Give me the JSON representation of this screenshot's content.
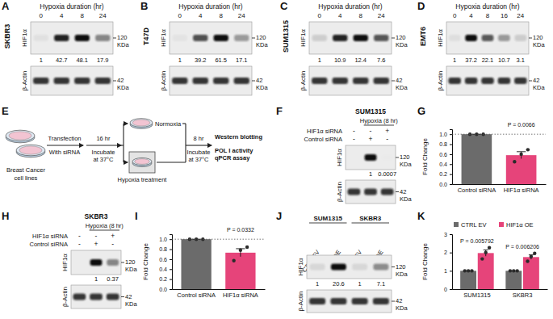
{
  "blots": [
    {
      "panel": "A",
      "cell_line": "SKBR3",
      "header": "Hypoxia duration (hr)",
      "lanes": [
        0,
        4,
        8,
        24
      ],
      "rows": [
        {
          "protein": "HIF1α",
          "size": "120 KDa",
          "quant": [
            1,
            42.7,
            48.1,
            17.9
          ]
        },
        {
          "protein": "β-Actin",
          "size": "42 KDa"
        }
      ]
    },
    {
      "panel": "B",
      "cell_line": "T47D",
      "header": "Hypoxia duration (hr)",
      "lanes": [
        0,
        4,
        8,
        24
      ],
      "rows": [
        {
          "protein": "HIF1α",
          "size": "120 KDa",
          "quant": [
            1,
            39.2,
            61.5,
            17.1
          ]
        },
        {
          "protein": "β-Actin",
          "size": "42 KDa"
        }
      ]
    },
    {
      "panel": "C",
      "cell_line": "SUM1315",
      "header": "Hypoxia duration (hr)",
      "lanes": [
        0,
        4,
        8,
        24
      ],
      "rows": [
        {
          "protein": "HIF1α",
          "size": "120 KDa",
          "quant": [
            1,
            10.9,
            12.4,
            7.6
          ]
        },
        {
          "protein": "β-Actin",
          "size": "42 KDa"
        }
      ]
    },
    {
      "panel": "D",
      "cell_line": "EMT6",
      "header": "Hypoxia duration (hr)",
      "lanes": [
        0,
        4,
        8,
        16,
        24
      ],
      "rows": [
        {
          "protein": "HIF1α",
          "size": "120 KDa",
          "quant": [
            1,
            37.2,
            22.1,
            10.7,
            3.1
          ]
        },
        {
          "protein": "β-Actin",
          "size": "42 KDa"
        }
      ]
    },
    {
      "panel": "F",
      "cell_line": "SUM1315",
      "header": "Hypoxia (8 hr)",
      "treatments": [
        {
          "label": "HIF1α siRNA",
          "signs": [
            "-",
            "-",
            "+"
          ]
        },
        {
          "label": "Control siRNA",
          "signs": [
            "-",
            "+",
            "-"
          ]
        }
      ],
      "rows": [
        {
          "protein": "HIF1α",
          "size": "120 KDa",
          "quant": [
            null,
            1,
            0.0007
          ]
        },
        {
          "protein": "β-Actin",
          "size": "42 KDa"
        }
      ]
    },
    {
      "panel": "H",
      "cell_line": "SKBR3",
      "header": "Hypoxia (8 hr)",
      "treatments": [
        {
          "label": "HIF1α siRNA",
          "signs": [
            "-",
            "-",
            "+"
          ]
        },
        {
          "label": "Control siRNA",
          "signs": [
            "-",
            "+",
            "-"
          ]
        }
      ],
      "rows": [
        {
          "protein": "HIF1α",
          "size": "120 KDa",
          "quant": [
            null,
            1,
            0.37
          ]
        },
        {
          "protein": "β-Actin",
          "size": "42 KDa"
        }
      ]
    },
    {
      "panel": "J",
      "groups": [
        {
          "label": "SUM1315",
          "lanes": [
            "CTRL EV",
            "HIF1α OE"
          ]
        },
        {
          "label": "SKBR3",
          "lanes": [
            "CTRL EV",
            "HIF1α OE"
          ]
        }
      ],
      "rows": [
        {
          "protein": "HIF1α",
          "size": "120 KDa",
          "quant": [
            1,
            20.6,
            1,
            7.1
          ]
        },
        {
          "protein": "β-Actin",
          "size": "42 KDa"
        }
      ]
    }
  ],
  "schematic": {
    "panel": "E",
    "source": [
      "Breast Cancer",
      "cell lines"
    ],
    "step1": [
      "Transfection",
      "With siRNA"
    ],
    "step2": {
      "above": "16 hr",
      "below": [
        "Incubate",
        "at 37°C"
      ]
    },
    "normoxia": "Normoxia",
    "hypoxia": "Hypoxia treatment",
    "step3": {
      "above": "8 hr",
      "below": [
        "Incubate",
        "at 37°C"
      ]
    },
    "outputs": [
      "Western blotting",
      "POL I activity",
      "qPCR assay"
    ]
  },
  "chart_data": [
    {
      "panel": "G",
      "type": "bar",
      "categories": [
        "Control siRNA",
        "HIF1α siRNA"
      ],
      "values": [
        1,
        0.58
      ],
      "errors": [
        0,
        0.07
      ],
      "points": [
        [
          1,
          1,
          1
        ],
        [
          0.45,
          0.6,
          0.69
        ]
      ],
      "colors": [
        "#6b6b6b",
        "#e6447a"
      ],
      "y_label": "Fold Change",
      "ylim": [
        0,
        1.1
      ],
      "yticks": [
        {
          "value": 0,
          "label": "0.0"
        },
        0.2,
        0.4,
        0.6,
        0.8,
        {
          "value": 1,
          "label": "1.0"
        }
      ],
      "reference_line": 1,
      "annotations": [
        "P = 0.0066"
      ]
    },
    {
      "panel": "I",
      "type": "bar",
      "categories": [
        "Control siRNA",
        "HIF1α siRNA"
      ],
      "values": [
        1,
        0.73
      ],
      "errors": [
        0,
        0.08
      ],
      "points": [
        [
          1,
          1,
          1
        ],
        [
          0.57,
          0.78,
          0.84
        ]
      ],
      "colors": [
        "#6b6b6b",
        "#e6447a"
      ],
      "y_label": "Fold Change",
      "ylim": [
        0,
        1.1
      ],
      "yticks": [
        {
          "value": 0,
          "label": "0.0"
        },
        0.2,
        0.4,
        0.6,
        0.8,
        {
          "value": 1,
          "label": "1.0"
        }
      ],
      "reference_line": 1,
      "annotations": [
        "P = 0.0332"
      ]
    },
    {
      "panel": "K",
      "type": "bar",
      "categories": [
        "SUM1315",
        "SKBR3"
      ],
      "series": [
        {
          "name": "CTRL EV",
          "color": "#6b6b6b",
          "values": [
            1,
            1
          ],
          "errors": [
            0,
            0
          ],
          "points": [
            [
              1,
              1,
              1
            ],
            [
              1,
              1,
              1
            ]
          ]
        },
        {
          "name": "HIF1α OE",
          "color": "#e6447a",
          "values": [
            1.97,
            1.75
          ],
          "errors": [
            0.17,
            0.12
          ],
          "points": [
            [
              1.65,
              2.0,
              2.26
            ],
            [
              1.52,
              1.78,
              1.95
            ]
          ]
        }
      ],
      "y_label": "Fold Change",
      "ylim": [
        0,
        3
      ],
      "yticks": [
        0,
        1,
        2,
        3
      ],
      "legend": "top-left",
      "annotations": [
        "P = 0.005792",
        "P = 0.006206"
      ]
    }
  ]
}
